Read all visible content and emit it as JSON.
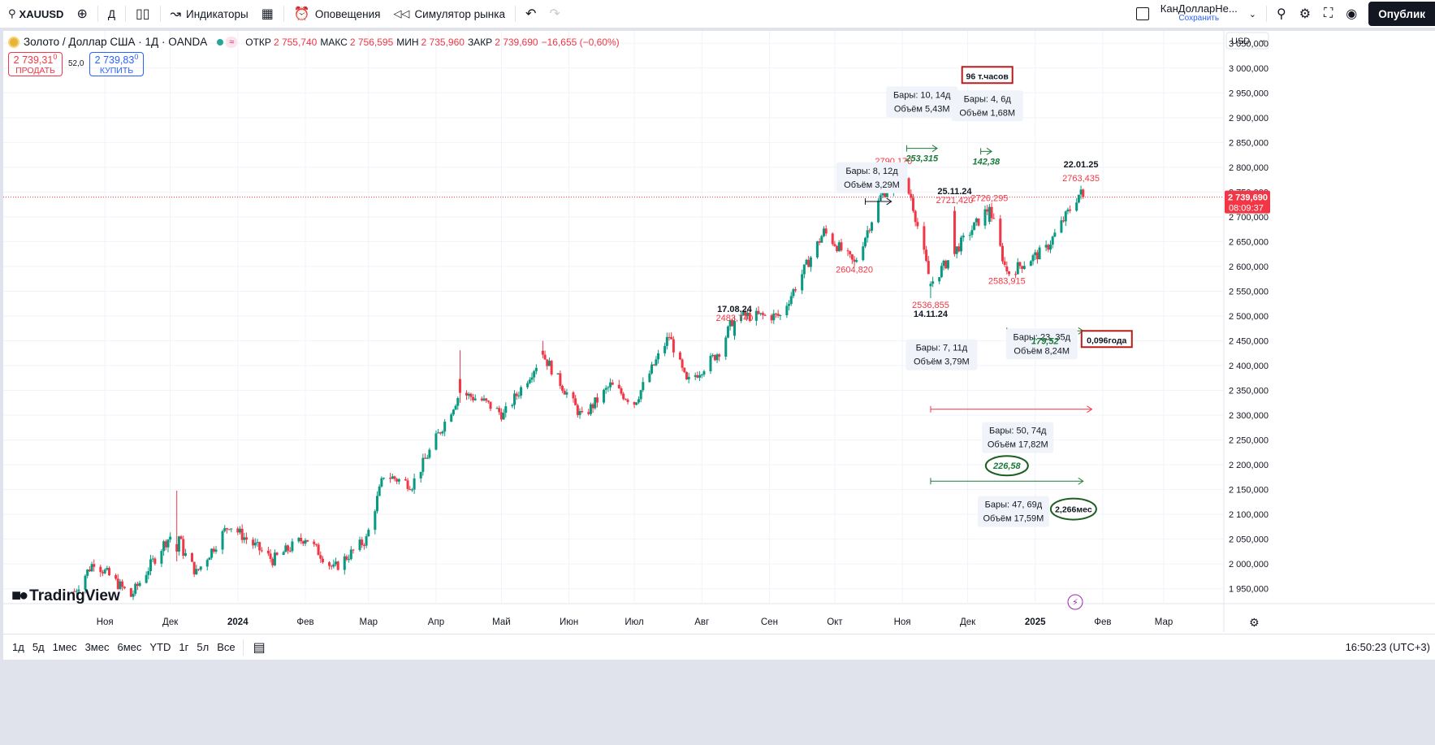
{
  "toolbar": {
    "symbol": "XAUUSD",
    "interval": "Д",
    "indicators": "Индикаторы",
    "alerts": "Оповещения",
    "replay": "Симулятор рынка",
    "layout_name": "КанДолларНе...",
    "layout_save": "Сохранить",
    "publish": "Опублик"
  },
  "legend": {
    "title": "Золото / Доллар США · 1Д · OANDA",
    "status_pill": "≈",
    "open_label": "ОТКР",
    "open": "2 755,740",
    "high_label": "МАКС",
    "high": "2 756,595",
    "low_label": "МИН",
    "low": "2 735,960",
    "close_label": "ЗАКР",
    "close": "2 739,690",
    "change": "−16,655 (−0,60%)"
  },
  "trade": {
    "sell_price": "2 739,31",
    "sell_sup": "0",
    "sell_label": "ПРОДАТЬ",
    "spread": "52,0",
    "buy_price": "2 739,83",
    "buy_sup": "0",
    "buy_label": "КУПИТЬ"
  },
  "branding": {
    "logo": "TradingView"
  },
  "colors": {
    "up": "#089981",
    "down": "#f23645",
    "accent": "#2962ff",
    "measure_green": "#1b7a3a",
    "highlight_red": "#b71c1c"
  },
  "chart_data": {
    "type": "candlestick",
    "currency": "USD",
    "y_ticks": [
      "3 050,000",
      "3 000,000",
      "2 950,000",
      "2 900,000",
      "2 850,000",
      "2 800,000",
      "2 750,000",
      "2 700,000",
      "2 650,000",
      "2 600,000",
      "2 550,000",
      "2 500,000",
      "2 450,000",
      "2 400,000",
      "2 350,000",
      "2 300,000",
      "2 250,000",
      "2 200,000",
      "2 150,000",
      "2 100,000",
      "2 050,000",
      "2 000,000",
      "1 950,000"
    ],
    "ylim": [
      1920,
      3075
    ],
    "x_ticks": [
      {
        "label": "Ноя",
        "date": "2023-11-01",
        "bold": false
      },
      {
        "label": "Дек",
        "date": "2023-12-01",
        "bold": false
      },
      {
        "label": "2024",
        "date": "2024-01-01",
        "bold": true
      },
      {
        "label": "Фев",
        "date": "2024-02-01",
        "bold": false
      },
      {
        "label": "Мар",
        "date": "2024-03-01",
        "bold": false
      },
      {
        "label": "Апр",
        "date": "2024-04-01",
        "bold": false
      },
      {
        "label": "Май",
        "date": "2024-05-01",
        "bold": false
      },
      {
        "label": "Июн",
        "date": "2024-06-01",
        "bold": false
      },
      {
        "label": "Июл",
        "date": "2024-07-01",
        "bold": false
      },
      {
        "label": "Авг",
        "date": "2024-08-01",
        "bold": false
      },
      {
        "label": "Сен",
        "date": "2024-09-01",
        "bold": false
      },
      {
        "label": "Окт",
        "date": "2024-10-01",
        "bold": false
      },
      {
        "label": "Ноя",
        "date": "2024-11-01",
        "bold": false
      },
      {
        "label": "Дек",
        "date": "2024-12-01",
        "bold": false
      },
      {
        "label": "2025",
        "date": "2025-01-01",
        "bold": true
      },
      {
        "label": "Фев",
        "date": "2025-02-01",
        "bold": false
      },
      {
        "label": "Мар",
        "date": "2025-03-01",
        "bold": false
      }
    ],
    "last_price": {
      "value": 2739.69,
      "label": "2 739,690",
      "timer": "08:09:37"
    },
    "anchors": [
      [
        "2023-10-18",
        1945
      ],
      [
        "2023-10-27",
        2005
      ],
      [
        "2023-11-13",
        1935
      ],
      [
        "2023-11-28",
        2040
      ],
      [
        "2023-12-04",
        2072
      ],
      [
        "2023-12-07",
        2025
      ],
      [
        "2023-12-13",
        1982
      ],
      [
        "2023-12-28",
        2080
      ],
      [
        "2024-01-05",
        2050
      ],
      [
        "2024-01-17",
        2008
      ],
      [
        "2024-02-01",
        2054
      ],
      [
        "2024-02-14",
        1990
      ],
      [
        "2024-02-29",
        2050
      ],
      [
        "2024-03-08",
        2180
      ],
      [
        "2024-03-21",
        2160
      ],
      [
        "2024-04-12",
        2345
      ],
      [
        "2024-04-22",
        2330
      ],
      [
        "2024-05-02",
        2300
      ],
      [
        "2024-05-20",
        2422
      ],
      [
        "2024-06-07",
        2295
      ],
      [
        "2024-06-20",
        2360
      ],
      [
        "2024-07-01",
        2325
      ],
      [
        "2024-07-17",
        2460
      ],
      [
        "2024-07-25",
        2365
      ],
      [
        "2024-08-05",
        2410
      ],
      [
        "2024-08-09",
        2430
      ],
      [
        "2024-08-16",
        2500
      ],
      [
        "2024-09-06",
        2500
      ],
      [
        "2024-09-26",
        2670
      ],
      [
        "2024-10-10",
        2605
      ],
      [
        "2024-10-22",
        2740
      ],
      [
        "2024-10-30",
        2785
      ],
      [
        "2024-11-05",
        2740
      ],
      [
        "2024-11-14",
        2565
      ],
      [
        "2024-11-25",
        2630
      ],
      [
        "2024-12-11",
        2720
      ],
      [
        "2024-12-19",
        2585
      ],
      [
        "2025-01-06",
        2635
      ],
      [
        "2025-01-21",
        2745
      ],
      [
        "2025-01-24",
        2740
      ]
    ],
    "bars": [
      [
        "2023-12-04",
        2040,
        2148,
        2005,
        2025
      ],
      [
        "2024-04-12",
        2373,
        2431,
        2325,
        2345
      ],
      [
        "2024-05-20",
        2430,
        2450,
        2415,
        2422
      ],
      [
        "2024-08-16",
        2460,
        2500,
        2452,
        2490
      ],
      [
        "2024-10-30",
        2770,
        2790,
        2760,
        2782
      ],
      [
        "2024-11-14",
        2560,
        2570,
        2536,
        2565
      ],
      [
        "2024-11-25",
        2712,
        2721,
        2620,
        2625
      ],
      [
        "2024-12-11",
        2690,
        2726,
        2685,
        2720
      ],
      [
        "2024-12-19",
        2600,
        2610,
        2584,
        2590
      ],
      [
        "2025-01-22",
        2745,
        2763,
        2735,
        2755
      ],
      [
        "2025-01-23",
        2755,
        2757,
        2736,
        2740
      ]
    ],
    "annotations": [
      {
        "text": "17.08.24",
        "date": "2024-08-16",
        "price": 2508,
        "kind": "date"
      },
      {
        "text": "2483,740",
        "date": "2024-08-16",
        "price": 2490,
        "kind": "price"
      },
      {
        "text": "2790,170",
        "date": "2024-10-28",
        "price": 2806,
        "kind": "price"
      },
      {
        "text": "2604,820",
        "date": "2024-10-10",
        "price": 2588,
        "kind": "price"
      },
      {
        "text": "25.11.24",
        "date": "2024-11-25",
        "price": 2746,
        "kind": "date"
      },
      {
        "text": "2721,420",
        "date": "2024-11-25",
        "price": 2728,
        "kind": "price"
      },
      {
        "text": "2726,295",
        "date": "2024-12-11",
        "price": 2732,
        "kind": "price"
      },
      {
        "text": "2583,915",
        "date": "2024-12-19",
        "price": 2565,
        "kind": "price"
      },
      {
        "text": "2536,855",
        "date": "2024-11-14",
        "price": 2516,
        "kind": "price"
      },
      {
        "text": "14.11.24",
        "date": "2024-11-14",
        "price": 2498,
        "kind": "date"
      },
      {
        "text": "22.01.25",
        "date": "2025-01-22",
        "price": 2800,
        "kind": "date"
      },
      {
        "text": "2763,435",
        "date": "2025-01-22",
        "price": 2772,
        "kind": "price"
      }
    ],
    "measures": [
      {
        "from": "2024-10-15",
        "to": "2024-10-27",
        "price": 2731,
        "color": "#131722",
        "value": "",
        "bars": "Бары: 8, 12д",
        "volume": "Объём 3,29M",
        "box_date": "2024-10-18",
        "box_price": 2787
      },
      {
        "from": "2024-11-03",
        "to": "2024-11-17",
        "price": 2838,
        "color": "#1b7a3a",
        "value": "253,315",
        "bars": "Бары: 10, 14д",
        "volume": "Объём 5,43M",
        "box_date": "2024-11-10",
        "box_price": 2940
      },
      {
        "from": "2024-12-07",
        "to": "2024-12-12",
        "price": 2832,
        "color": "#1b7a3a",
        "value": "142,38",
        "bars": "Бары: 4, 6д",
        "volume": "Объём 1,68M",
        "box_date": "2024-12-10",
        "box_price": 2932,
        "tag": "96 т.часов"
      },
      {
        "from": "2024-11-14",
        "to": "2024-11-25",
        "price": 2445,
        "color": "#1b7a3a",
        "value": "",
        "bars": "Бары: 7, 11д",
        "volume": "Объём 3,79M",
        "box_date": "2024-11-19",
        "box_price": 2430
      },
      {
        "from": "2024-12-19",
        "to": "2025-01-23",
        "price": 2470,
        "color": "#1b7a3a",
        "value": "179,52",
        "bars": "Бары: 23, 35д",
        "volume": "Объём 8,24M",
        "box_date": "2025-01-04",
        "box_price": 2452,
        "tag": "0,096года"
      },
      {
        "from": "2024-11-14",
        "to": "2025-01-27",
        "price": 2312,
        "color": "#f23645",
        "value": "",
        "bars": "Бары: 50, 74д",
        "volume": "Объём 17,82M",
        "box_date": "2024-12-24",
        "box_price": 2263
      },
      {
        "from": "2024-11-14",
        "to": "2025-01-23",
        "price": 2167,
        "color": "#1b7a3a",
        "value": "226,58",
        "bars": "Бары: 47, 69д",
        "volume": "Объём 17,59M",
        "box_date": "2024-12-22",
        "box_price": 2114,
        "tag": "2,266мес",
        "circle_value": true
      }
    ]
  },
  "bottom": {
    "ranges": [
      "1д",
      "5д",
      "1мес",
      "3мес",
      "6мес",
      "YTD",
      "1г",
      "5л",
      "Все"
    ],
    "clock": "16:50:23 (UTC+3)"
  }
}
